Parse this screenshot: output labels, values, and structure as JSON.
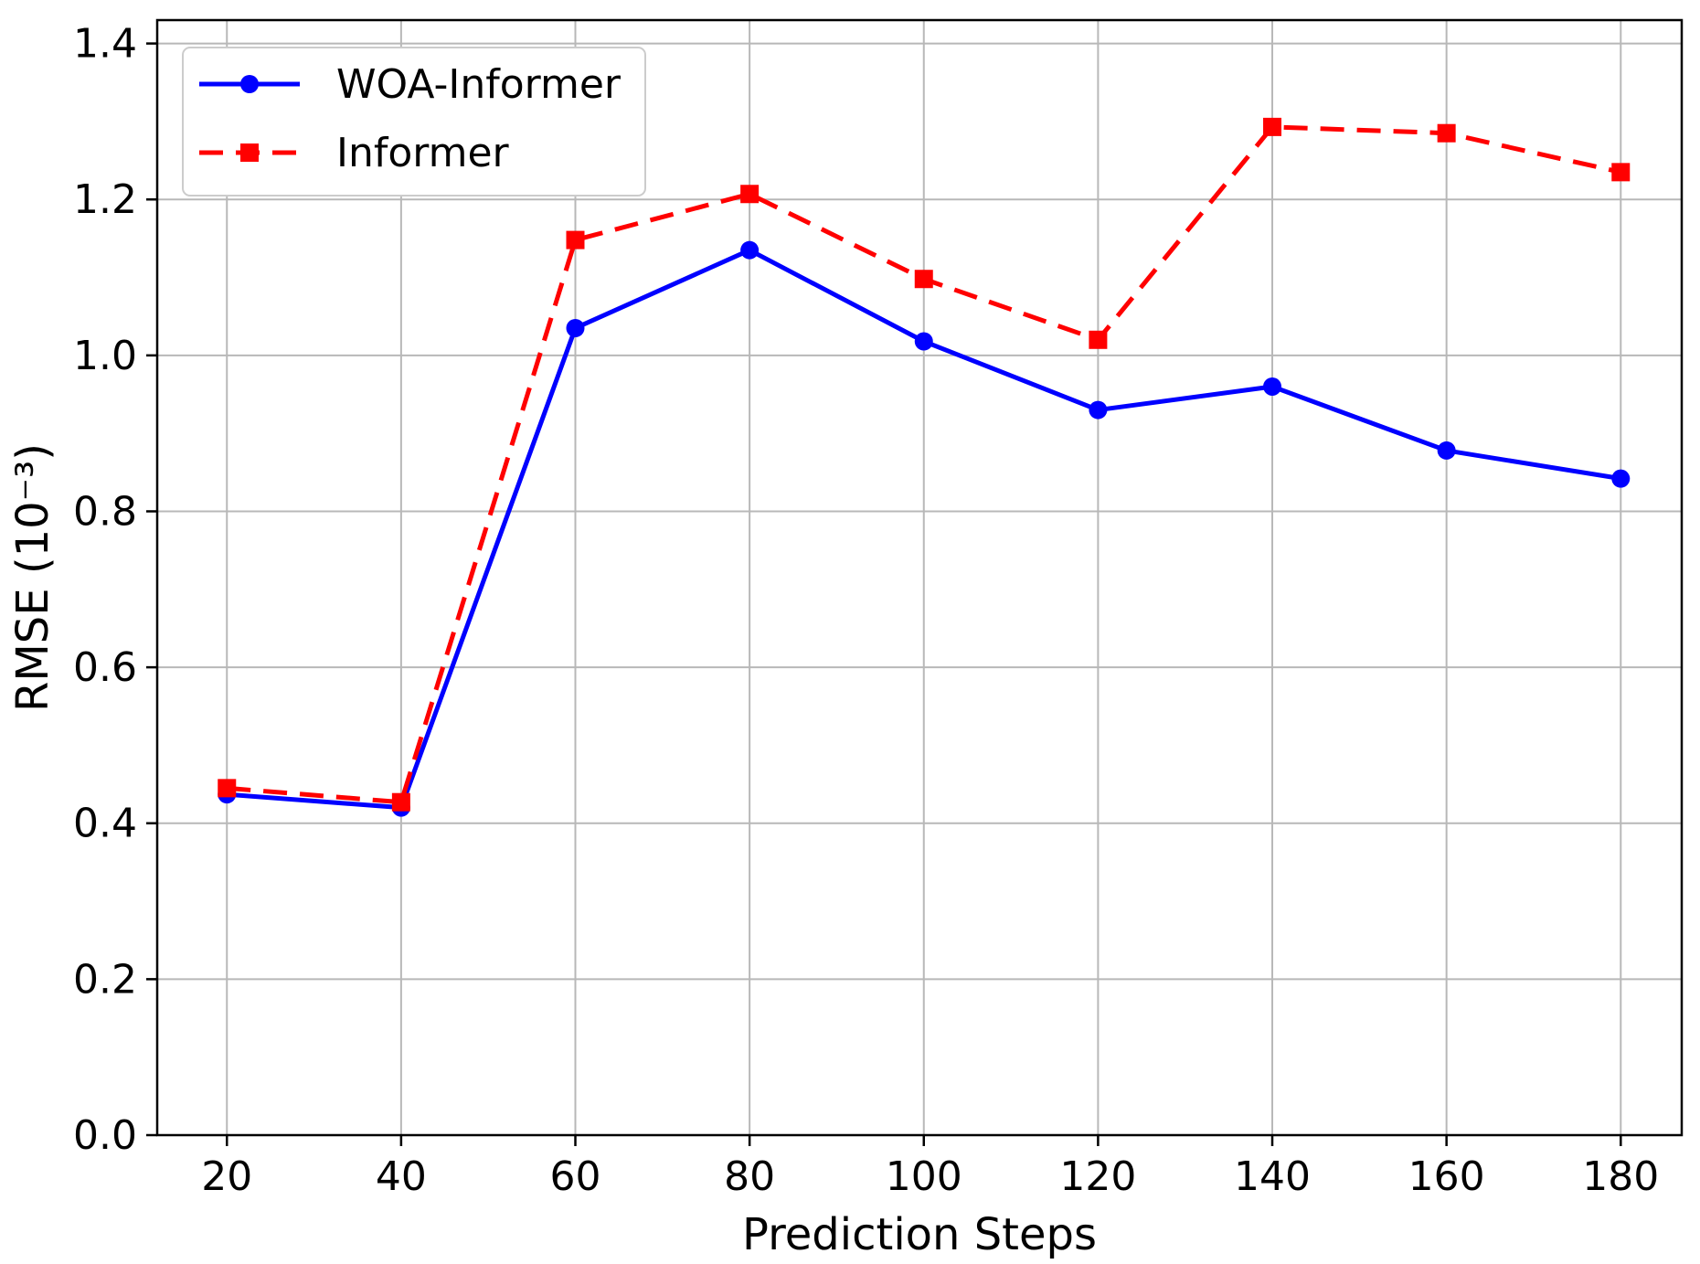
{
  "chart_data": {
    "type": "line",
    "title": "",
    "xlabel": "Prediction Steps",
    "ylabel": "RMSE (10⁻³)",
    "x": [
      20,
      40,
      60,
      80,
      100,
      120,
      140,
      160,
      180
    ],
    "xticks": [
      "20",
      "40",
      "60",
      "80",
      "100",
      "120",
      "140",
      "160",
      "180"
    ],
    "yticks": [
      "0.0",
      "0.2",
      "0.4",
      "0.6",
      "0.8",
      "1.0",
      "1.2",
      "1.4"
    ],
    "xlim": [
      12,
      187
    ],
    "ylim": [
      0.0,
      1.43
    ],
    "grid": true,
    "legend_position": "top-left",
    "series": [
      {
        "name": "WOA-Informer",
        "color": "#0000ff",
        "line_style": "solid",
        "marker": "circle",
        "values": [
          0.437,
          0.42,
          1.035,
          1.135,
          1.018,
          0.93,
          0.96,
          0.878,
          0.842
        ]
      },
      {
        "name": "Informer",
        "color": "#ff0000",
        "line_style": "dashed",
        "marker": "square",
        "values": [
          0.445,
          0.427,
          1.148,
          1.207,
          1.098,
          1.02,
          1.293,
          1.285,
          1.235
        ]
      }
    ]
  }
}
